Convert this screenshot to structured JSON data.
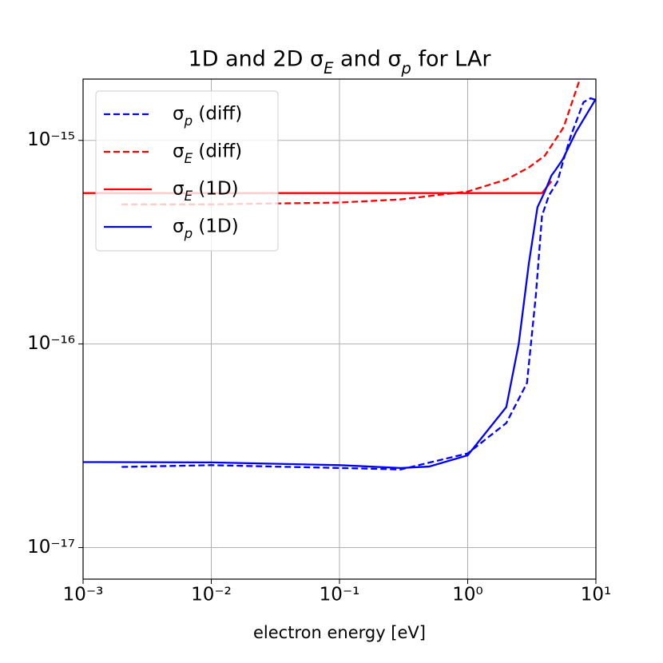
{
  "chart_data": {
    "type": "line",
    "title": "1D and 2D σE and σp for LAr",
    "xlabel": "electron energy [eV]",
    "xscale": "log",
    "yscale": "log",
    "grid": true,
    "legend": "upper left",
    "xlim": [
      0.001,
      10
    ],
    "ylim": [
      7e-18,
      2e-15
    ],
    "xticks": [
      {
        "value": 0.001,
        "label": "10⁻³"
      },
      {
        "value": 0.01,
        "label": "10⁻²"
      },
      {
        "value": 0.1,
        "label": "10⁻¹"
      },
      {
        "value": 1,
        "label": "10⁰"
      },
      {
        "value": 10,
        "label": "10¹"
      }
    ],
    "yticks": [
      {
        "value": 1e-17,
        "label": "10⁻¹⁷"
      },
      {
        "value": 1e-16,
        "label": "10⁻¹⁶"
      },
      {
        "value": 1e-15,
        "label": "10⁻¹⁵"
      }
    ],
    "series": [
      {
        "name": "σp (diff)",
        "color": "#0000ff",
        "style": "dashed",
        "x": [
          0.002,
          0.01,
          0.1,
          0.3,
          1,
          2,
          2.9,
          3.4,
          3.8,
          4.3,
          5.0,
          5.6,
          6.4,
          8.0,
          9.1,
          10
        ],
        "values": [
          2.49e-17,
          2.54e-17,
          2.46e-17,
          2.42e-17,
          2.9e-17,
          4.09e-17,
          6.43e-17,
          1.73e-16,
          4.27e-16,
          5.36e-16,
          6.25e-16,
          8.05e-16,
          1.06e-15,
          1.54e-15,
          1.61e-15,
          1.58e-15
        ]
      },
      {
        "name": "σE (diff)",
        "color": "#ff0000",
        "style": "dashed",
        "x": [
          0.002,
          0.01,
          0.1,
          0.3,
          1,
          2,
          3,
          4,
          5.6,
          7.5
        ],
        "values": [
          4.85e-16,
          4.85e-16,
          4.95e-16,
          5.13e-16,
          5.61e-16,
          6.42e-16,
          7.36e-16,
          8.42e-16,
          1.16e-15,
          2e-15
        ]
      },
      {
        "name": "σE (1D)",
        "color": "#ff0000",
        "style": "solid",
        "x": [
          0.001,
          3.8,
          4.5
        ],
        "values": [
          5.51e-16,
          5.51e-16,
          6.3e-16
        ]
      },
      {
        "name": "σp (1D)",
        "color": "#0000ff",
        "style": "solid",
        "x": [
          0.001,
          0.01,
          0.1,
          0.3,
          0.5,
          1,
          2,
          2.5,
          3,
          3.5,
          4,
          4.5,
          4.8,
          5.5,
          7,
          10
        ],
        "values": [
          2.63e-17,
          2.62e-17,
          2.54e-17,
          2.46e-17,
          2.5e-17,
          2.84e-17,
          4.9e-17,
          1e-16,
          2.49e-16,
          4.69e-16,
          5.61e-16,
          6.72e-16,
          7.1e-16,
          8.05e-16,
          1.1e-15,
          1.6e-15
        ]
      }
    ]
  }
}
